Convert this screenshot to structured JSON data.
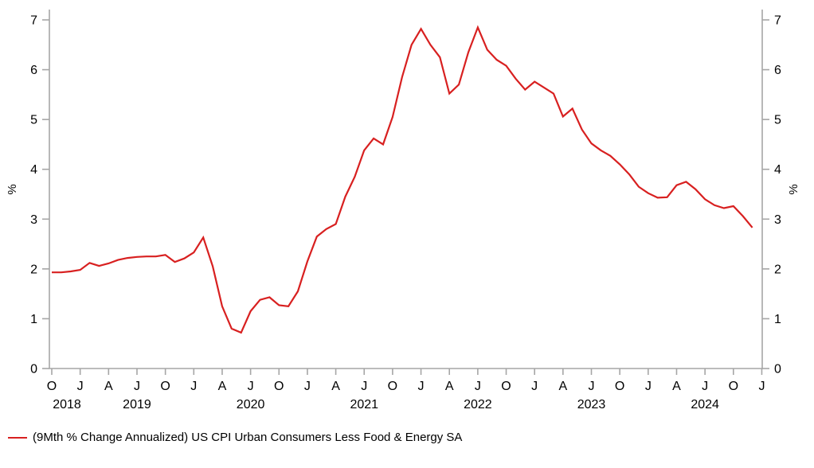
{
  "chart": {
    "legend": {
      "label": "(9Mth % Change Annualized) US CPI Urban Consumers Less Food & Energy SA",
      "swatch_color": "#d82020"
    },
    "y_axis": {
      "label_left": "%",
      "label_right": "%",
      "ticks": [
        0,
        1,
        2,
        3,
        4,
        5,
        6,
        7
      ],
      "range": [
        0,
        7
      ]
    },
    "x_axis": {
      "month_tick_labels": [
        "O",
        "J",
        "A",
        "J",
        "O",
        "J",
        "A",
        "J",
        "O",
        "J",
        "A",
        "J",
        "O",
        "J",
        "A",
        "J",
        "O",
        "J",
        "A",
        "J",
        "O",
        "J",
        "A",
        "J",
        "O",
        "J"
      ],
      "year_labels": [
        "2018",
        "2019",
        "2020",
        "2021",
        "2022",
        "2023",
        "2024"
      ]
    },
    "colors": {
      "series": "#d82020",
      "axis": "#a6a6a6",
      "text": "#000000",
      "background": "#ffffff"
    }
  },
  "chart_data": {
    "type": "line",
    "title": "",
    "xlabel": "",
    "ylabel": "%",
    "ylim": [
      0,
      7
    ],
    "grid": false,
    "legend_position": "bottom-left",
    "x": [
      "2018-10",
      "2018-11",
      "2018-12",
      "2019-01",
      "2019-02",
      "2019-03",
      "2019-04",
      "2019-05",
      "2019-06",
      "2019-07",
      "2019-08",
      "2019-09",
      "2019-10",
      "2019-11",
      "2019-12",
      "2020-01",
      "2020-02",
      "2020-03",
      "2020-04",
      "2020-05",
      "2020-06",
      "2020-07",
      "2020-08",
      "2020-09",
      "2020-10",
      "2020-11",
      "2020-12",
      "2021-01",
      "2021-02",
      "2021-03",
      "2021-04",
      "2021-05",
      "2021-06",
      "2021-07",
      "2021-08",
      "2021-09",
      "2021-10",
      "2021-11",
      "2021-12",
      "2022-01",
      "2022-02",
      "2022-03",
      "2022-04",
      "2022-05",
      "2022-06",
      "2022-07",
      "2022-08",
      "2022-09",
      "2022-10",
      "2022-11",
      "2022-12",
      "2023-01",
      "2023-02",
      "2023-03",
      "2023-04",
      "2023-05",
      "2023-06",
      "2023-07",
      "2023-08",
      "2023-09",
      "2023-10",
      "2023-11",
      "2023-12",
      "2024-01",
      "2024-02",
      "2024-03",
      "2024-04",
      "2024-05",
      "2024-06",
      "2024-07",
      "2024-08",
      "2024-09",
      "2024-10",
      "2024-11",
      "2024-12"
    ],
    "series": [
      {
        "name": "(9Mth % Change Annualized) US CPI Urban Consumers Less Food & Energy SA",
        "color": "#d82020",
        "values": [
          1.93,
          1.93,
          1.95,
          1.98,
          2.12,
          2.06,
          2.11,
          2.18,
          2.22,
          2.24,
          2.25,
          2.25,
          2.28,
          2.14,
          2.21,
          2.33,
          2.63,
          2.05,
          1.25,
          0.8,
          0.72,
          1.15,
          1.38,
          1.43,
          1.27,
          1.25,
          1.55,
          2.15,
          2.65,
          2.8,
          2.9,
          3.45,
          3.85,
          4.38,
          4.62,
          4.5,
          5.05,
          5.85,
          6.5,
          6.82,
          6.5,
          6.25,
          5.52,
          5.7,
          6.35,
          6.85,
          6.4,
          6.2,
          6.08,
          5.82,
          5.6,
          5.76,
          5.64,
          5.52,
          5.06,
          5.22,
          4.8,
          4.52,
          4.38,
          4.27,
          4.1,
          3.9,
          3.65,
          3.52,
          3.43,
          3.44,
          3.68,
          3.75,
          3.6,
          3.4,
          3.28,
          3.22,
          3.26,
          3.06,
          2.83
        ]
      }
    ]
  }
}
